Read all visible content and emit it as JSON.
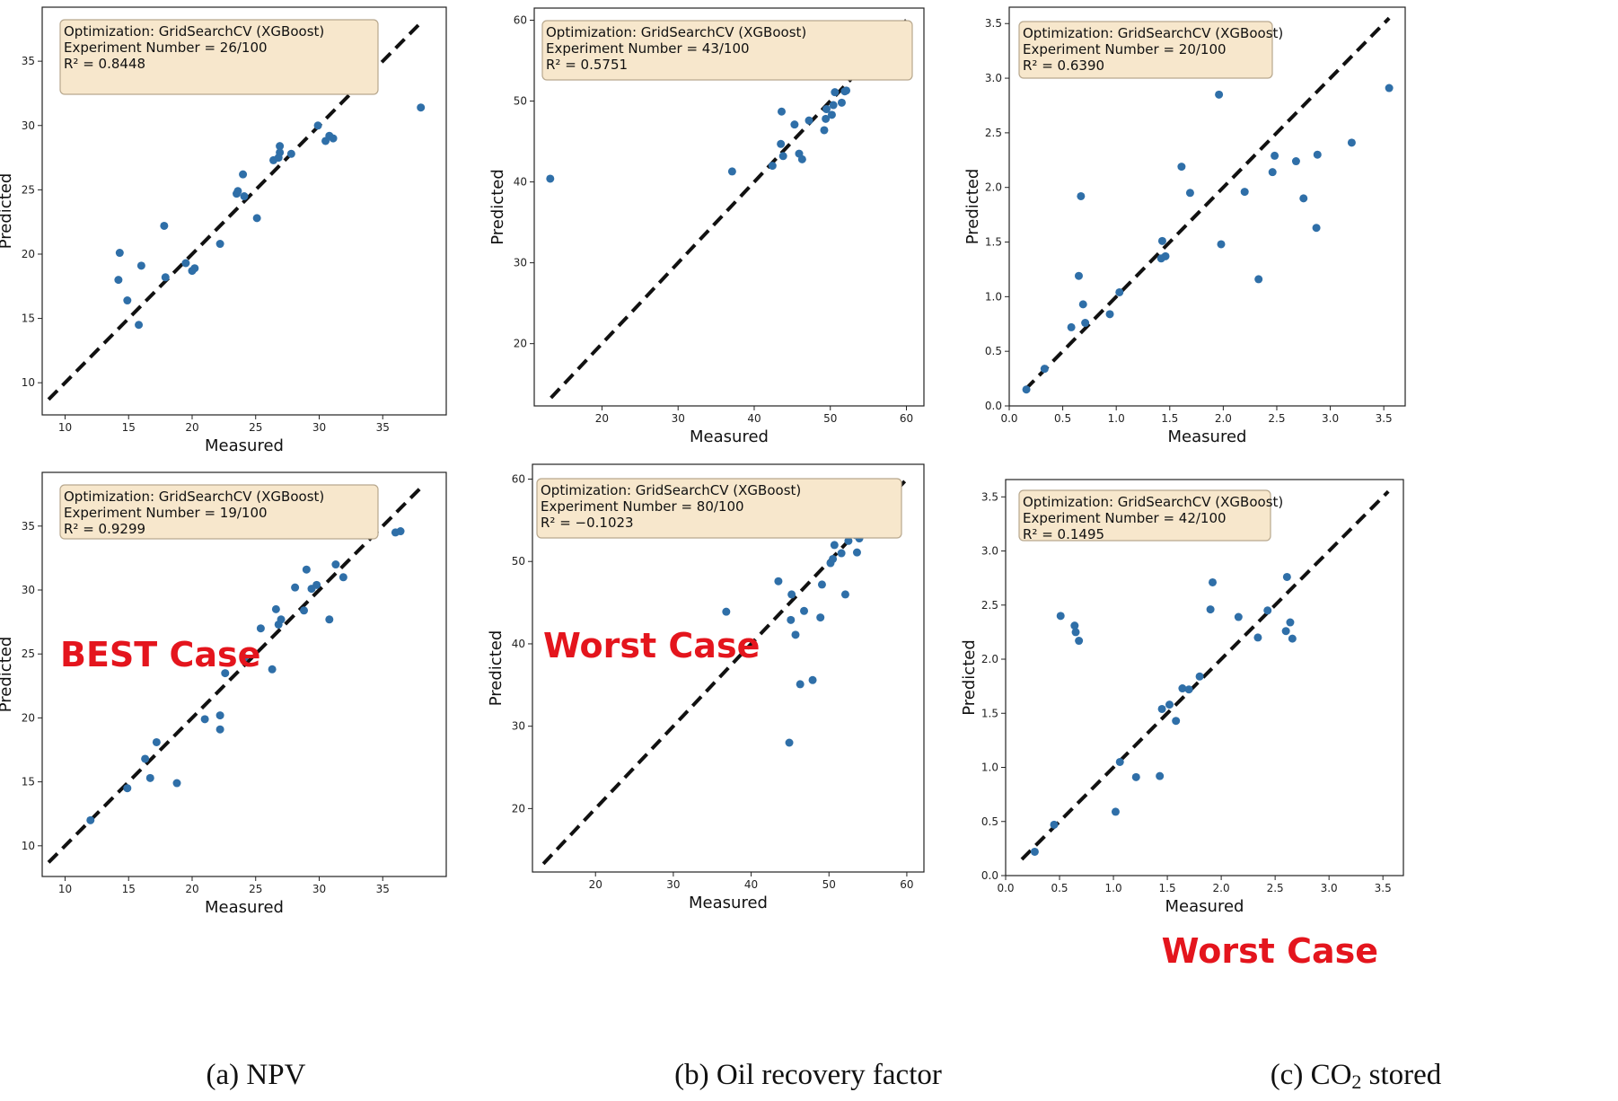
{
  "colors": {
    "point": "#2f6fa8",
    "fit_line": "#111111",
    "annotation_bg": "#f7e7cc",
    "annotation_border": "#b8a88e",
    "case_label": "#e4151d"
  },
  "captions": [
    "(a) NPV",
    "(b) Oil recovery factor",
    "(c) CO2 stored"
  ],
  "chart_data": [
    {
      "type": "scatter",
      "xlabel": "Measured",
      "ylabel": "Predicted",
      "xlim": [
        8.2,
        40
      ],
      "ylim": [
        7.5,
        39.2
      ],
      "xticks": [
        10,
        15,
        20,
        25,
        30,
        35
      ],
      "yticks": [
        10,
        15,
        20,
        25,
        30,
        35
      ],
      "tick_labels_x": [
        "10",
        "15",
        "20",
        "25",
        "30",
        "35"
      ],
      "tick_labels_y": [
        "10",
        "15",
        "20",
        "25",
        "30",
        "35"
      ],
      "annotation": [
        "Optimization: GridSearchCV (XGBoost)",
        "Experiment Number = 26/100",
        "R² = 0.8448"
      ],
      "case_label": "",
      "fit_line": [
        [
          8.7,
          8.7
        ],
        [
          38.2,
          38.2
        ]
      ],
      "points": [
        [
          14.2,
          18.0
        ],
        [
          14.3,
          20.1
        ],
        [
          14.9,
          16.4
        ],
        [
          15.8,
          14.5
        ],
        [
          16.0,
          19.1
        ],
        [
          17.8,
          22.2
        ],
        [
          17.9,
          18.2
        ],
        [
          19.5,
          19.3
        ],
        [
          20.0,
          18.7
        ],
        [
          20.2,
          18.9
        ],
        [
          22.2,
          20.8
        ],
        [
          23.5,
          24.7
        ],
        [
          23.6,
          24.9
        ],
        [
          24.0,
          26.2
        ],
        [
          24.1,
          24.5
        ],
        [
          25.1,
          22.8
        ],
        [
          26.4,
          27.3
        ],
        [
          26.8,
          27.5
        ],
        [
          26.9,
          28.4
        ],
        [
          26.9,
          27.9
        ],
        [
          27.8,
          27.8
        ],
        [
          29.9,
          30.0
        ],
        [
          30.5,
          28.8
        ],
        [
          30.8,
          29.2
        ],
        [
          31.1,
          29.0
        ],
        [
          33.2,
          34.5
        ],
        [
          38.0,
          31.4
        ]
      ]
    },
    {
      "type": "scatter",
      "xlabel": "Measured",
      "ylabel": "Predicted",
      "xlim": [
        11.1,
        62.3
      ],
      "ylim": [
        12.3,
        61.5
      ],
      "xticks": [
        20,
        30,
        40,
        50,
        60
      ],
      "yticks": [
        20,
        30,
        40,
        50,
        60
      ],
      "tick_labels_x": [
        "20",
        "30",
        "40",
        "50",
        "60"
      ],
      "tick_labels_y": [
        "20",
        "30",
        "40",
        "50",
        "60"
      ],
      "annotation": [
        "Optimization: GridSearchCV (XGBoost)",
        "Experiment Number = 43/100",
        "R² = 0.5751"
      ],
      "case_label": "",
      "fit_line": [
        [
          13.3,
          13.3
        ],
        [
          60.0,
          60.0
        ]
      ],
      "points": [
        [
          13.2,
          40.4
        ],
        [
          37.1,
          41.3
        ],
        [
          42.4,
          42.0
        ],
        [
          43.5,
          44.7
        ],
        [
          43.8,
          43.2
        ],
        [
          43.6,
          48.7
        ],
        [
          45.3,
          47.1
        ],
        [
          45.9,
          43.5
        ],
        [
          46.3,
          42.8
        ],
        [
          47.2,
          47.6
        ],
        [
          49.2,
          46.4
        ],
        [
          49.4,
          47.8
        ],
        [
          49.5,
          49.0
        ],
        [
          50.2,
          48.3
        ],
        [
          50.4,
          49.5
        ],
        [
          50.6,
          51.1
        ],
        [
          51.5,
          49.8
        ],
        [
          51.9,
          51.2
        ],
        [
          52.1,
          51.3
        ],
        [
          54.4,
          53.9
        ],
        [
          55.1,
          53.9
        ],
        [
          55.4,
          58.0
        ],
        [
          55.7,
          54.0
        ],
        [
          56.6,
          54.4
        ],
        [
          56.8,
          55.3
        ],
        [
          58.0,
          58.4
        ]
      ]
    },
    {
      "type": "scatter",
      "xlabel": "Measured",
      "ylabel": "Predicted",
      "xlim": [
        0,
        3.7
      ],
      "ylim": [
        0,
        3.65
      ],
      "xticks": [
        0,
        0.5,
        1.0,
        1.5,
        2.0,
        2.5,
        3.0,
        3.5
      ],
      "yticks": [
        0,
        0.5,
        1.0,
        1.5,
        2.0,
        2.5,
        3.0,
        3.5
      ],
      "tick_labels_x": [
        "0.0",
        "0.5",
        "1.0",
        "1.5",
        "2.0",
        "2.5",
        "3.0",
        "3.5"
      ],
      "tick_labels_y": [
        "0.0",
        "0.5",
        "1.0",
        "1.5",
        "2.0",
        "2.5",
        "3.0",
        "3.5"
      ],
      "annotation": [
        "Optimization: GridSearchCV (XGBoost)",
        "Experiment Number = 20/100",
        "R² = 0.6390"
      ],
      "case_label": "",
      "fit_line": [
        [
          0.15,
          0.15
        ],
        [
          3.55,
          3.55
        ]
      ],
      "points": [
        [
          0.16,
          0.15
        ],
        [
          0.33,
          0.34
        ],
        [
          0.58,
          0.72
        ],
        [
          0.65,
          1.19
        ],
        [
          0.67,
          1.92
        ],
        [
          0.69,
          0.93
        ],
        [
          0.71,
          0.76
        ],
        [
          0.94,
          0.84
        ],
        [
          1.03,
          1.04
        ],
        [
          1.42,
          1.35
        ],
        [
          1.43,
          1.51
        ],
        [
          1.46,
          1.37
        ],
        [
          1.61,
          2.19
        ],
        [
          1.69,
          1.95
        ],
        [
          1.96,
          2.85
        ],
        [
          1.98,
          1.48
        ],
        [
          2.2,
          1.96
        ],
        [
          2.33,
          1.16
        ],
        [
          2.46,
          2.14
        ],
        [
          2.48,
          2.29
        ],
        [
          2.68,
          2.24
        ],
        [
          2.75,
          1.9
        ],
        [
          2.87,
          1.63
        ],
        [
          2.88,
          2.3
        ],
        [
          3.2,
          2.41
        ],
        [
          3.55,
          2.91
        ]
      ]
    },
    {
      "type": "scatter",
      "xlabel": "Measured",
      "ylabel": "Predicted",
      "xlim": [
        8.2,
        40
      ],
      "ylim": [
        7.6,
        39.2
      ],
      "xticks": [
        10,
        15,
        20,
        25,
        30,
        35
      ],
      "yticks": [
        10,
        15,
        20,
        25,
        30,
        35
      ],
      "tick_labels_x": [
        "10",
        "15",
        "20",
        "25",
        "30",
        "35"
      ],
      "tick_labels_y": [
        "10",
        "15",
        "20",
        "25",
        "30",
        "35"
      ],
      "annotation": [
        "Optimization: GridSearchCV (XGBoost)",
        "Experiment Number = 19/100",
        "R² = 0.9299"
      ],
      "case_label": "BEST Case",
      "fit_line": [
        [
          8.7,
          8.7
        ],
        [
          38.2,
          38.2
        ]
      ],
      "points": [
        [
          12.0,
          12.0
        ],
        [
          14.9,
          14.5
        ],
        [
          16.3,
          16.8
        ],
        [
          16.7,
          15.3
        ],
        [
          17.2,
          18.1
        ],
        [
          18.8,
          14.9
        ],
        [
          21.0,
          19.9
        ],
        [
          22.2,
          20.2
        ],
        [
          22.2,
          19.1
        ],
        [
          22.6,
          23.5
        ],
        [
          24.1,
          24.7
        ],
        [
          25.4,
          27.0
        ],
        [
          26.3,
          23.8
        ],
        [
          26.6,
          28.5
        ],
        [
          26.8,
          27.3
        ],
        [
          27.0,
          27.7
        ],
        [
          28.1,
          30.2
        ],
        [
          28.8,
          28.4
        ],
        [
          29.0,
          31.6
        ],
        [
          29.4,
          30.1
        ],
        [
          29.8,
          30.4
        ],
        [
          30.8,
          27.7
        ],
        [
          31.3,
          32.0
        ],
        [
          31.9,
          31.0
        ],
        [
          33.2,
          34.5
        ],
        [
          36.0,
          34.5
        ],
        [
          36.4,
          34.6
        ]
      ]
    },
    {
      "type": "scatter",
      "xlabel": "Measured",
      "ylabel": "Predicted",
      "xlim": [
        11.9,
        62.2
      ],
      "ylim": [
        12.3,
        61.8
      ],
      "xticks": [
        20,
        30,
        40,
        50,
        60
      ],
      "yticks": [
        20,
        30,
        40,
        50,
        60
      ],
      "tick_labels_x": [
        "20",
        "30",
        "40",
        "50",
        "60"
      ],
      "tick_labels_y": [
        "20",
        "30",
        "40",
        "50",
        "60"
      ],
      "annotation": [
        "Optimization: GridSearchCV (XGBoost)",
        "Experiment Number = 80/100",
        "R² = −0.1023"
      ],
      "case_label": "Worst Case",
      "fit_line": [
        [
          13.3,
          13.3
        ],
        [
          60.0,
          60.0
        ]
      ],
      "points": [
        [
          36.8,
          43.9
        ],
        [
          43.5,
          47.6
        ],
        [
          44.9,
          28.0
        ],
        [
          45.1,
          42.9
        ],
        [
          45.2,
          46.0
        ],
        [
          45.7,
          41.1
        ],
        [
          46.3,
          35.1
        ],
        [
          46.8,
          44.0
        ],
        [
          47.9,
          35.6
        ],
        [
          48.9,
          43.2
        ],
        [
          49.1,
          47.2
        ],
        [
          50.2,
          49.8
        ],
        [
          50.5,
          50.3
        ],
        [
          50.7,
          52.0
        ],
        [
          51.6,
          51.0
        ],
        [
          52.1,
          46.0
        ],
        [
          52.5,
          52.5
        ],
        [
          53.0,
          53.6
        ],
        [
          53.4,
          53.2
        ],
        [
          53.6,
          51.1
        ],
        [
          53.9,
          52.8
        ],
        [
          54.1,
          55.0
        ],
        [
          54.9,
          53.8
        ],
        [
          55.9,
          57.3
        ],
        [
          57.2,
          55.1
        ],
        [
          57.8,
          57.6
        ],
        [
          58.4,
          56.7
        ],
        [
          58.6,
          56.5
        ]
      ]
    },
    {
      "type": "scatter",
      "xlabel": "Measured",
      "ylabel": "Predicted",
      "xlim": [
        0,
        3.69
      ],
      "ylim": [
        0,
        3.66
      ],
      "xticks": [
        0,
        0.5,
        1.0,
        1.5,
        2.0,
        2.5,
        3.0,
        3.5
      ],
      "yticks": [
        0,
        0.5,
        1.0,
        1.5,
        2.0,
        2.5,
        3.0,
        3.5
      ],
      "tick_labels_x": [
        "0.0",
        "0.5",
        "1.0",
        "1.5",
        "2.0",
        "2.5",
        "3.0",
        "3.5"
      ],
      "tick_labels_y": [
        "0.0",
        "0.5",
        "1.0",
        "1.5",
        "2.0",
        "2.5",
        "3.0",
        "3.5"
      ],
      "annotation": [
        "Optimization: GridSearchCV (XGBoost)",
        "Experiment Number = 42/100",
        "R² = 0.1495"
      ],
      "case_label": "Worst Case",
      "fit_line": [
        [
          0.15,
          0.15
        ],
        [
          3.55,
          3.55
        ]
      ],
      "points": [
        [
          0.27,
          0.22
        ],
        [
          0.45,
          0.47
        ],
        [
          0.51,
          2.4
        ],
        [
          0.64,
          2.31
        ],
        [
          0.65,
          2.25
        ],
        [
          0.68,
          2.17
        ],
        [
          1.02,
          0.59
        ],
        [
          1.06,
          1.05
        ],
        [
          1.21,
          0.91
        ],
        [
          1.43,
          0.92
        ],
        [
          1.45,
          1.54
        ],
        [
          1.52,
          1.58
        ],
        [
          1.58,
          1.43
        ],
        [
          1.64,
          1.73
        ],
        [
          1.7,
          1.72
        ],
        [
          1.8,
          1.84
        ],
        [
          1.9,
          2.46
        ],
        [
          1.92,
          2.71
        ],
        [
          2.16,
          2.39
        ],
        [
          2.34,
          2.2
        ],
        [
          2.43,
          2.45
        ],
        [
          2.6,
          2.26
        ],
        [
          2.61,
          2.76
        ],
        [
          2.64,
          2.34
        ],
        [
          2.66,
          2.19
        ]
      ]
    }
  ]
}
